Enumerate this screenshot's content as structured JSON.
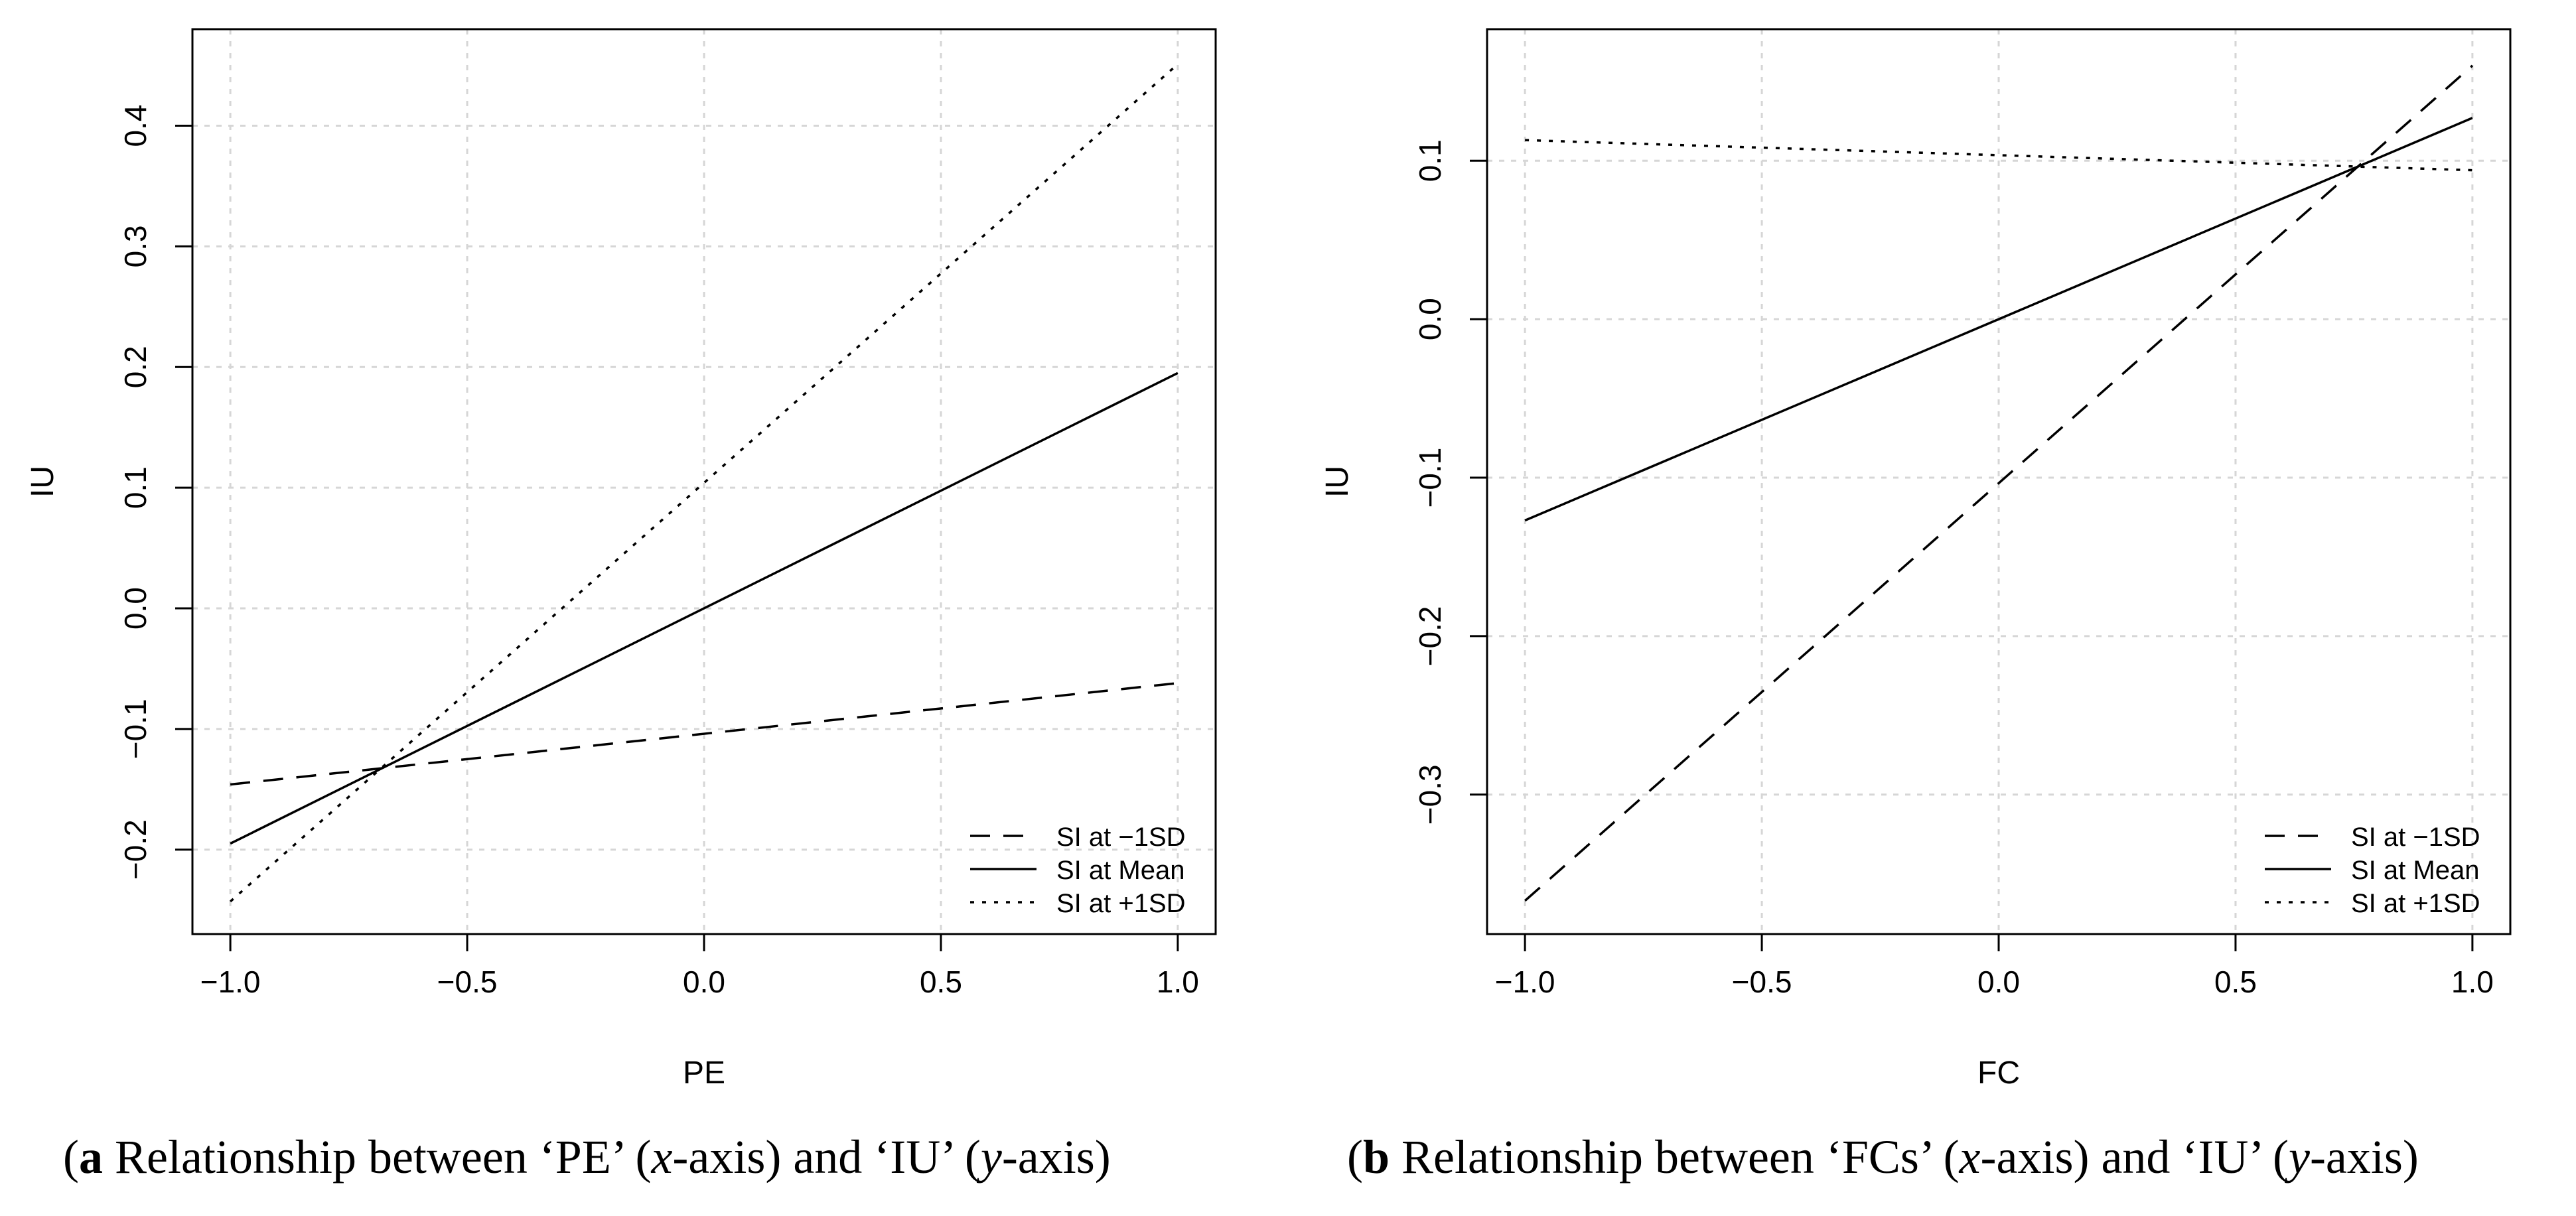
{
  "chart_data": [
    {
      "type": "line",
      "panel": "a",
      "xlabel": "PE",
      "ylabel": "IU",
      "xlim": [
        -1.08,
        1.08
      ],
      "ylim": [
        -0.27,
        0.48
      ],
      "xticks": [
        -1.0,
        -0.5,
        0.0,
        0.5,
        1.0
      ],
      "xtick_labels": [
        "−1.0",
        "−0.5",
        "0.0",
        "0.5",
        "1.0"
      ],
      "yticks": [
        -0.2,
        -0.1,
        0.0,
        0.1,
        0.2,
        0.3,
        0.4
      ],
      "ytick_labels": [
        "−0.2",
        "−0.1",
        "0.0",
        "0.1",
        "0.2",
        "0.3",
        "0.4"
      ],
      "grid": true,
      "legend_position": "bottom-right",
      "series": [
        {
          "name": "SI at −1SD",
          "style": "dashed",
          "x": [
            -1.0,
            1.0
          ],
          "y": [
            -0.146,
            -0.062
          ]
        },
        {
          "name": "SI at Mean",
          "style": "solid",
          "x": [
            -1.0,
            1.0
          ],
          "y": [
            -0.195,
            0.195
          ]
        },
        {
          "name": "SI at +1SD",
          "style": "dotted",
          "x": [
            -1.0,
            1.0
          ],
          "y": [
            -0.243,
            0.451
          ]
        }
      ],
      "caption": {
        "label": "a",
        "text": " Relationship between ‘PE’ (",
        "x_var": "x",
        "mid": "-axis) and ‘IU’ (",
        "y_var": "y",
        "end": "-axis)"
      }
    },
    {
      "type": "line",
      "panel": "b",
      "xlabel": "FC",
      "ylabel": "IU",
      "xlim": [
        -1.08,
        1.08
      ],
      "ylim": [
        -0.388,
        0.183
      ],
      "xticks": [
        -1.0,
        -0.5,
        0.0,
        0.5,
        1.0
      ],
      "xtick_labels": [
        "−1.0",
        "−0.5",
        "0.0",
        "0.5",
        "1.0"
      ],
      "yticks": [
        -0.3,
        -0.2,
        -0.1,
        0.0,
        0.1
      ],
      "ytick_labels": [
        "−0.3",
        "−0.2",
        "−0.1",
        "0.0",
        "0.1"
      ],
      "grid": true,
      "legend_position": "bottom-right",
      "series": [
        {
          "name": "SI at −1SD",
          "style": "dashed",
          "x": [
            -1.0,
            1.0
          ],
          "y": [
            -0.367,
            0.16
          ]
        },
        {
          "name": "SI at Mean",
          "style": "solid",
          "x": [
            -1.0,
            1.0
          ],
          "y": [
            -0.127,
            0.127
          ]
        },
        {
          "name": "SI at +1SD",
          "style": "dotted",
          "x": [
            -1.0,
            1.0
          ],
          "y": [
            0.113,
            0.094
          ]
        }
      ],
      "caption": {
        "label": "b",
        "text": " Relationship between ‘FCs’ (",
        "x_var": "x",
        "mid": "-axis) and ‘IU’ (",
        "y_var": "y",
        "end": "-axis)"
      }
    }
  ]
}
